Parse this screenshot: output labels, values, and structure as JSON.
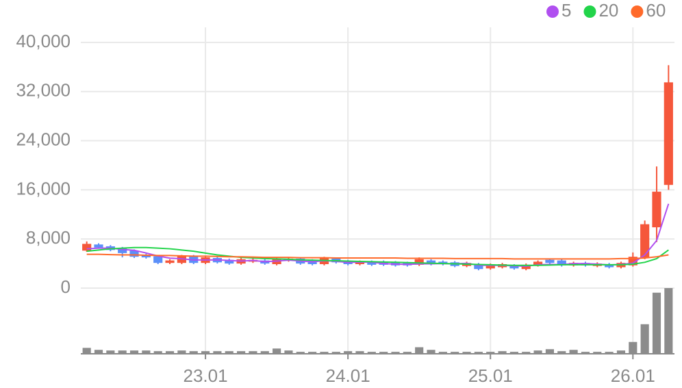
{
  "chart_data": {
    "type": "candlestick",
    "categories": [
      null,
      null,
      null,
      null,
      null,
      null,
      null,
      null,
      null,
      null,
      "23.01",
      null,
      null,
      null,
      null,
      null,
      null,
      null,
      null,
      null,
      null,
      null,
      "24.01",
      null,
      null,
      null,
      null,
      null,
      null,
      null,
      null,
      null,
      null,
      null,
      "25.01",
      null,
      null,
      null,
      null,
      null,
      null,
      null,
      null,
      null,
      null,
      null,
      "26.01",
      null,
      null,
      null
    ],
    "open": [
      6100,
      7100,
      6800,
      6500,
      6100,
      5400,
      5200,
      4100,
      4100,
      5200,
      4100,
      4900,
      4600,
      4000,
      4300,
      4500,
      3900,
      4500,
      4800,
      4500,
      3900,
      4800,
      4400,
      3900,
      4300,
      4300,
      4200,
      4100,
      3800,
      4500,
      4300,
      4200,
      3600,
      3900,
      3200,
      3400,
      3700,
      3100,
      3700,
      4600,
      4500,
      3700,
      4100,
      3600,
      3900,
      3400,
      3700,
      4900,
      9900,
      16800
    ],
    "high": [
      7600,
      7300,
      7000,
      6700,
      6300,
      5600,
      5400,
      4700,
      5400,
      5400,
      5200,
      5100,
      4800,
      4900,
      4800,
      4700,
      4900,
      5000,
      5000,
      4700,
      5100,
      5000,
      4600,
      4500,
      4500,
      4500,
      4400,
      4300,
      5000,
      4700,
      4500,
      4400,
      4300,
      4100,
      4000,
      4100,
      3900,
      4000,
      4500,
      4800,
      4700,
      4300,
      4300,
      4200,
      4100,
      4300,
      5800,
      11000,
      19800,
      36300
    ],
    "low": [
      5900,
      6400,
      6000,
      5000,
      4900,
      4800,
      3900,
      3900,
      3900,
      3900,
      3900,
      4000,
      3800,
      3800,
      4100,
      3800,
      3700,
      4300,
      3800,
      3700,
      3700,
      4000,
      3700,
      3700,
      3600,
      3600,
      3500,
      3500,
      3600,
      3700,
      3700,
      3400,
      3400,
      2900,
      3000,
      3200,
      3000,
      2900,
      3500,
      3900,
      3500,
      3500,
      3500,
      3400,
      3200,
      3200,
      3500,
      4700,
      7500,
      16000
    ],
    "close": [
      7200,
      6600,
      6200,
      5700,
      5100,
      5000,
      4100,
      4500,
      5200,
      4100,
      5000,
      4200,
      4000,
      4700,
      4600,
      4000,
      4700,
      4800,
      4000,
      3900,
      4900,
      4200,
      3900,
      4300,
      3800,
      3800,
      3700,
      3700,
      4700,
      3900,
      3900,
      3600,
      4100,
      3100,
      3800,
      3900,
      3200,
      3800,
      4300,
      4100,
      3700,
      4100,
      3700,
      4000,
      3400,
      4100,
      5100,
      10400,
      15700,
      33500
    ],
    "up_color": "#f5573b",
    "down_color": "#5b8ff9",
    "volume": {
      "values": [
        9,
        6,
        5,
        5,
        5,
        5,
        4,
        4,
        5,
        4,
        4,
        4,
        4,
        4,
        4,
        4,
        8,
        5,
        3,
        3,
        3,
        3,
        4,
        4,
        3,
        3,
        3,
        3,
        10,
        6,
        3,
        3,
        3,
        3,
        3,
        4,
        3,
        3,
        5,
        7,
        4,
        6,
        3,
        3,
        3,
        5,
        18,
        45,
        93,
        100
      ],
      "color": "#8c8c8c",
      "ylim": [
        0,
        100
      ]
    },
    "series": [
      {
        "name": "5",
        "color": "#b04ff0",
        "values": [
          6400,
          6500,
          6500,
          6300,
          6160,
          5720,
          5220,
          4880,
          4780,
          4580,
          4580,
          4600,
          4500,
          4400,
          4500,
          4300,
          4400,
          4560,
          4420,
          4280,
          4460,
          4360,
          4180,
          4240,
          4220,
          4000,
          3900,
          3860,
          3940,
          3960,
          3980,
          3960,
          4040,
          3720,
          3700,
          3700,
          3620,
          3560,
          3800,
          3860,
          3820,
          4000,
          3980,
          3920,
          3780,
          3860,
          4060,
          5400,
          7740,
          13720
        ]
      },
      {
        "name": "20",
        "color": "#22d44a",
        "values": [
          6000,
          6200,
          6400,
          6500,
          6600,
          6600,
          6500,
          6400,
          6200,
          6000,
          5700,
          5400,
          5200,
          5000,
          4900,
          4800,
          4750,
          4700,
          4600,
          4550,
          4500,
          4450,
          4400,
          4350,
          4300,
          4250,
          4200,
          4150,
          4100,
          4050,
          4000,
          3950,
          3900,
          3850,
          3800,
          3750,
          3700,
          3700,
          3700,
          3750,
          3800,
          3800,
          3800,
          3800,
          3800,
          3800,
          3900,
          4200,
          4800,
          6200
        ]
      },
      {
        "name": "60",
        "color": "#ff6a2a",
        "values": [
          5500,
          5500,
          5450,
          5400,
          5400,
          5350,
          5300,
          5300,
          5250,
          5200,
          5200,
          5150,
          5100,
          5100,
          5050,
          5000,
          5000,
          5000,
          4950,
          4950,
          4950,
          4900,
          4900,
          4900,
          4900,
          4900,
          4900,
          4850,
          4850,
          4850,
          4850,
          4800,
          4800,
          4800,
          4800,
          4800,
          4750,
          4750,
          4750,
          4750,
          4750,
          4750,
          4750,
          4750,
          4750,
          4800,
          4800,
          4900,
          5100,
          5400
        ]
      }
    ],
    "ylim": [
      0,
      40000
    ],
    "yticks": [
      0,
      {
        "value": 8000,
        "label": "8,000"
      },
      {
        "value": 16000,
        "label": "16,000"
      },
      {
        "value": 24000,
        "label": "24,000"
      },
      {
        "value": 32000,
        "label": "32,000"
      },
      {
        "value": 40000,
        "label": "40,000"
      }
    ],
    "grid": true
  }
}
